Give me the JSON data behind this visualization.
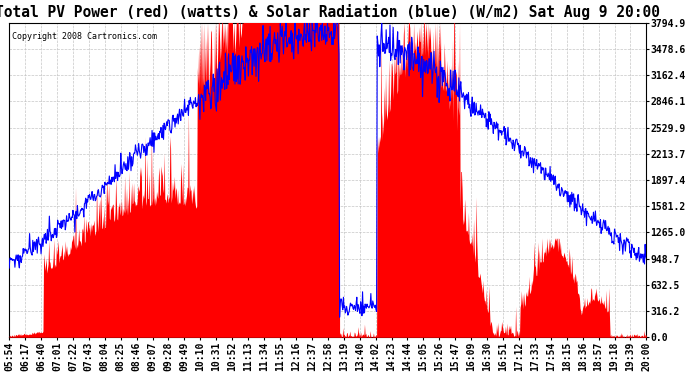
{
  "title": "Total PV Power (red) (watts) & Solar Radiation (blue) (W/m2) Sat Aug 9 20:00",
  "copyright_text": "Copyright 2008 Cartronics.com",
  "background_color": "#ffffff",
  "plot_bg_color": "#ffffff",
  "grid_color": "#c0c0c0",
  "y_ticks": [
    0.0,
    316.2,
    632.5,
    948.7,
    1265.0,
    1581.2,
    1897.4,
    2213.7,
    2529.9,
    2846.1,
    3162.4,
    3478.6,
    3794.9
  ],
  "y_max": 3794.9,
  "title_fontsize": 10.5,
  "axis_fontsize": 7.0,
  "pv_color": "#ff0000",
  "solar_color": "#0000ff",
  "x_labels": [
    "05:54",
    "06:17",
    "06:40",
    "07:01",
    "07:22",
    "07:43",
    "08:04",
    "08:25",
    "08:46",
    "09:07",
    "09:28",
    "09:49",
    "10:10",
    "10:31",
    "10:52",
    "11:13",
    "11:34",
    "11:55",
    "12:16",
    "12:37",
    "12:58",
    "13:19",
    "13:40",
    "14:02",
    "14:23",
    "14:44",
    "15:05",
    "15:26",
    "15:47",
    "16:09",
    "16:30",
    "16:51",
    "17:12",
    "17:33",
    "17:54",
    "18:15",
    "18:36",
    "18:57",
    "19:18",
    "19:39",
    "20:00"
  ],
  "solar_max_wm2": 950,
  "solar_display_level": 948.7
}
